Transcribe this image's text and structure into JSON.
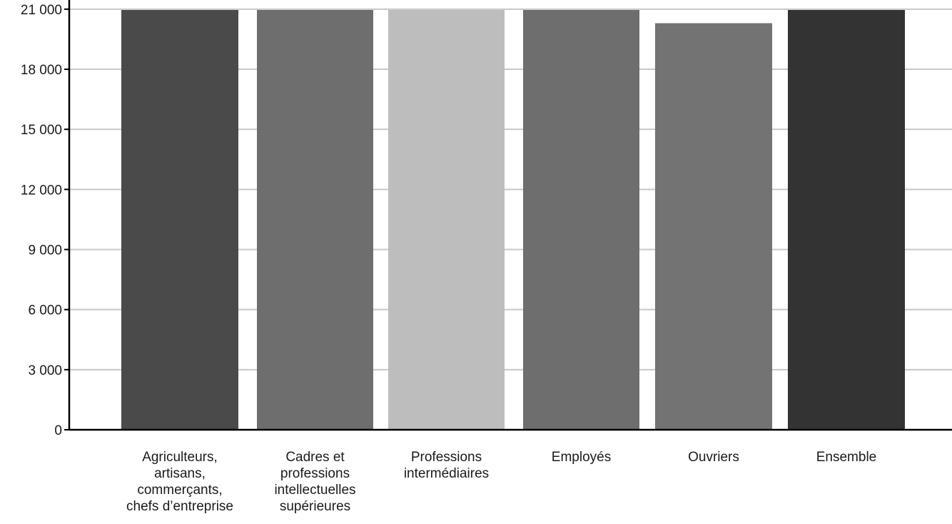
{
  "chart_data": {
    "type": "bar",
    "title": "",
    "xlabel": "",
    "ylabel": "",
    "categories": [
      "Agriculteurs, artisans, commerçants, chefs d’entreprise",
      "Cadres et professions intellectuelles supérieures",
      "Professions intermédiaires",
      "Employés",
      "Ouvriers",
      "Ensemble"
    ],
    "category_lines": [
      [
        "Agriculteurs,",
        "artisans,",
        "commerçants,",
        "chefs d’entreprise"
      ],
      [
        "Cadres et",
        "professions",
        "intellectuelles",
        "supérieures"
      ],
      [
        "Professions",
        "intermédiaires"
      ],
      [
        "Employés"
      ],
      [
        "Ouvriers"
      ],
      [
        "Ensemble"
      ]
    ],
    "values": [
      21000,
      21000,
      21000,
      21000,
      20300,
      21000
    ],
    "value_note": "",
    "ylim": [
      0,
      21000
    ],
    "yticks": [
      0,
      3000,
      6000,
      9000,
      12000,
      15000,
      18000,
      21000
    ],
    "ytick_labels": [
      "0",
      "3 000",
      "6 000",
      "9 000",
      "12 000",
      "15 000",
      "18 000",
      "21 000"
    ],
    "bar_colors": [
      "#4a4a4a",
      "#6e6e6e",
      "#bdbdbd",
      "#6e6e6e",
      "#737373",
      "#333333"
    ],
    "grid": true,
    "legend": "none"
  }
}
